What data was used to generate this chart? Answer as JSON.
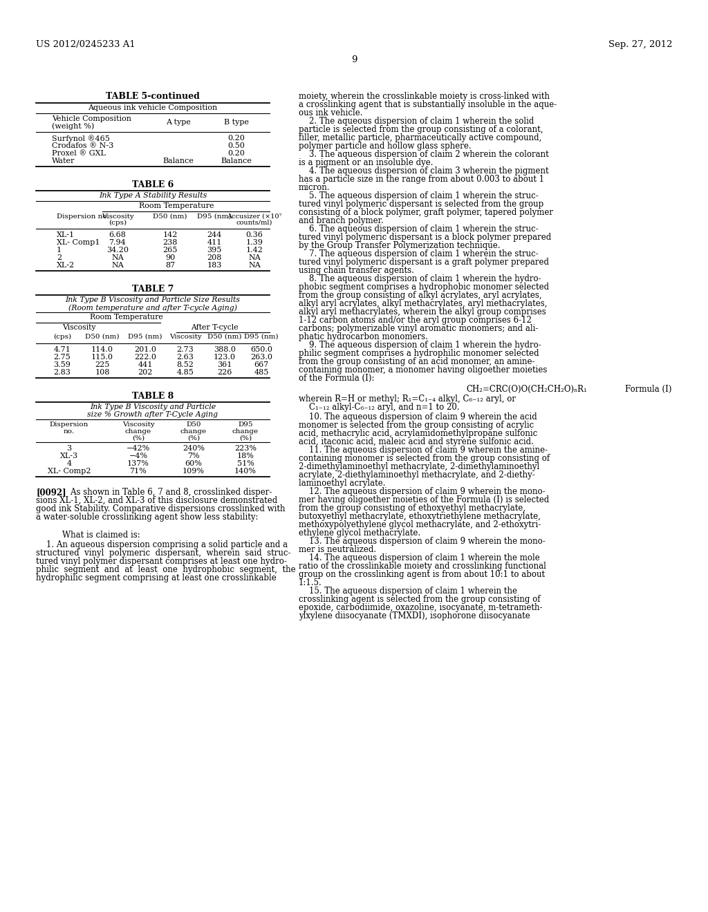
{
  "background_color": "#ffffff",
  "header_left": "US 2012/0245233 A1",
  "header_right": "Sep. 27, 2012",
  "page_number": "9",
  "table5_title": "TABLE 5-continued",
  "table5_subtitle": "Aqueous ink vehicle Composition",
  "table5_rows": [
    [
      "Surfynol ®465",
      "",
      "0.20"
    ],
    [
      "Crodafos ® N-3",
      "",
      "0.50"
    ],
    [
      "Proxel ® GXL",
      "",
      "0.20"
    ],
    [
      "Water",
      "Balance",
      "Balance"
    ]
  ],
  "table6_title": "TABLE 6",
  "table6_subtitle": "Ink Type A Stability Results",
  "table6_rows": [
    [
      "XL-1",
      "6.68",
      "142",
      "244",
      "0.36"
    ],
    [
      "XL- Comp1",
      "7.94",
      "238",
      "411",
      "1.39"
    ],
    [
      "1",
      "34.20",
      "265",
      "395",
      "1.42"
    ],
    [
      "2",
      "NA",
      "90",
      "208",
      "NA"
    ],
    [
      "XL-2",
      "NA",
      "87",
      "183",
      "NA"
    ]
  ],
  "table7_title": "TABLE 7",
  "table7_rows": [
    [
      "4.71",
      "114.0",
      "201.0",
      "2.73",
      "388.0",
      "650.0"
    ],
    [
      "2.75",
      "115.0",
      "222.0",
      "2.63",
      "123.0",
      "263.0"
    ],
    [
      "3.59",
      "225",
      "441",
      "8.52",
      "361",
      "667"
    ],
    [
      "2.83",
      "108",
      "202",
      "4.85",
      "226",
      "485"
    ]
  ],
  "table8_title": "TABLE 8",
  "table8_rows": [
    [
      "3",
      "−42%",
      "240%",
      "223%"
    ],
    [
      "XL-3",
      "−4%",
      "7%",
      "18%"
    ],
    [
      "4",
      "137%",
      "60%",
      "51%"
    ],
    [
      "XL- Comp2",
      "71%",
      "109%",
      "140%"
    ]
  ],
  "right_paragraphs": [
    "moiety, wherein the crosslinkable moiety is cross-linked with",
    "a crosslinking agent that is substantially insoluble in the aque-",
    "ous ink vehicle.",
    "    2. The aqueous dispersion of claim ±1 wherein the solid",
    "particle is selected from the group consisting of a colorant,",
    "filler, metallic particle, pharmaceutically active compound,",
    "polymer particle and hollow glass sphere.",
    "    3. The aqueous dispersion of claim ±2 wherein the colorant",
    "is a pigment or an insoluble dye.",
    "    4. The aqueous dispersion of claim ±3 wherein the pigment",
    "has a particle size in the range from about 0.003 to about 1",
    "micron.",
    "    5. The aqueous dispersion of claim ±1 wherein the struc-",
    "tured vinyl polymeric dispersant is selected from the group",
    "consisting of a block polymer, graft polymer, tapered polymer",
    "and branch polymer.",
    "    6. The aqueous dispersion of claim ±1 wherein the struc-",
    "tured vinyl polymeric dispersant is a block polymer prepared",
    "by the Group Transfer Polymerization technique.",
    "    7. The aqueous dispersion of claim ±1 wherein the struc-",
    "tured vinyl polymeric dispersant is a graft polymer prepared",
    "using chain transfer agents.",
    "    8. The aqueous dispersion of claim ±1 wherein the hydro-",
    "phobic segment comprises a hydrophobic monomer selected",
    "from the group consisting of alkyl acrylates, aryl acrylates,",
    "alkyl aryl acrylates, alkyl methacrylates, aryl methacrylates,",
    "alkyl aryl methacrylates, wherein the alkyl group comprises",
    "1-12 carbon atoms and/or the aryl group comprises 6-12",
    "carbons; polymerizable vinyl aromatic monomers; and ali-",
    "phatic hydrocarbon monomers.",
    "    9. The aqueous dispersion of claim ±1 wherein the hydro-",
    "philic segment comprises a hydrophilic monomer selected",
    "from the group consisting of an acid monomer, an amine-",
    "containing monomer, a monomer having oligoether moieties",
    "of the Formula (I):"
  ],
  "formula_text": "CH₂=CRC(O)O(CH₂CH₂O)ₙR₁",
  "formula_label": "Formula (I)",
  "formula_note": [
    "wherein R=H or methyl; R₁=C₁₋₄ alkyl, C₆₋₁₂ aryl, or",
    "    C₁₋₁₂ alkyl-C₆₋₁₂ aryl, and n=1 to 20."
  ],
  "claims_after_formula": [
    "    10. The aqueous dispersion of claim 9 wherein the acid",
    "monomer is selected from the group consisting of acrylic",
    "acid, methacrylic acid, acrylamidomethylpropane sulfonic",
    "acid, itaconic acid, maleic acid and styrene sulfonic acid.",
    "    11. The aqueous dispersion of claim 9 wherein the amine-",
    "containing monomer is selected from the group consisting of",
    "2-dimethylaminoethyl methacrylate, 2-dimethylaminoethyl",
    "acrylate, 2-diethylaminoethyl methacrylate, and 2-diethy-",
    "laminoethyl acrylate.",
    "    12. The aqueous dispersion of claim 9 wherein the mono-",
    "mer having oligoether moieties of the Formula (I) is selected",
    "from the group consisting of ethoxyethyl methacrylate,",
    "butoxyethyl methacrylate, ethoxytriethylene methacrylate,",
    "methoxypolyethylene glycol methacrylate, and 2-ethoxytri-",
    "ethylene glycol methacrylate.",
    "    13. The aqueous dispersion of claim 9 wherein the mono-",
    "mer is neutralized.",
    "    14. The aqueous dispersion of claim ±1 wherein the mole",
    "ratio of the crosslinkable moiety and crosslinking functional",
    "group on the crosslinking agent is from about 10:1 to about",
    "1:1.5.",
    "    15. The aqueous dispersion of claim ±1 wherein the",
    "crosslinking agent is selected from the group consisting of",
    "epoxide, carbodiimide, oxazoline, isocyanate, m-tetrameth-",
    "ylxylene diisocyanate (TMXDI), isophorone diisocyanate"
  ],
  "left_para_0092": [
    "[0092]    As shown in Table 6, 7 and 8, crosslinked disper-",
    "sions XL-1, XL-2, and XL-3 of this disclosure demonstrated",
    "good ink Stability. Comparative dispersions crosslinked with",
    "a water-soluble crosslinking agent show less stability:"
  ],
  "claim_what": "What is claimed is:",
  "claim_1_lines": [
    "    ±1. An aqueous dispersion comprising a solid particle and a",
    "structured  vinyl  polymeric  dispersant,  wherein  said  struc-",
    "tured vinyl polymer dispersant comprises at least one hydro-",
    "philic  segment  and  at  least  one  hydrophobic  segment,  the",
    "hydrophilic segment comprising at least one crosslinkable"
  ]
}
